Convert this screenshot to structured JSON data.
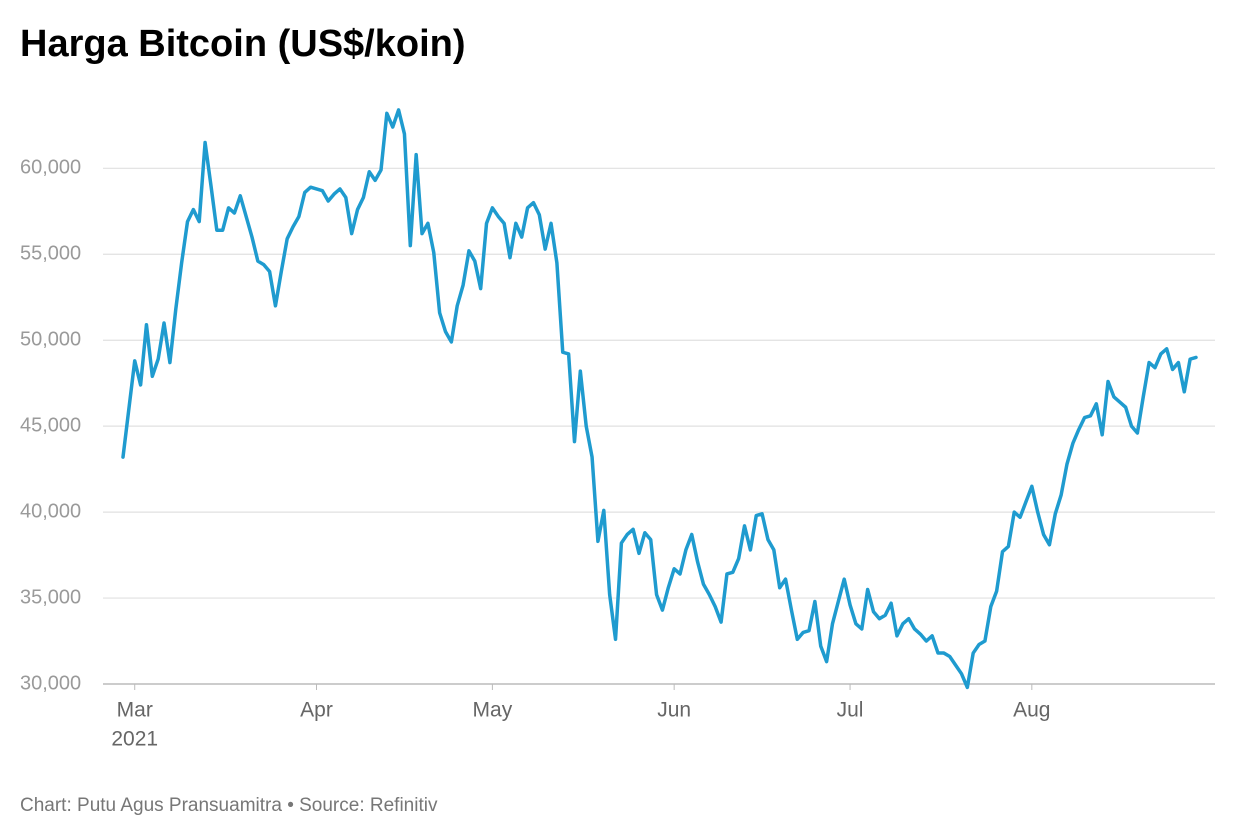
{
  "chart_data": {
    "type": "line",
    "title": "Harga Bitcoin (US$/koin)",
    "credit": "Chart: Putu Agus Pransuamitra • Source: Refinitiv",
    "x_sublabel": "2021",
    "categories": [
      null,
      null,
      "Mar",
      null,
      null,
      null,
      null,
      null,
      null,
      null,
      null,
      null,
      null,
      null,
      null,
      null,
      null,
      null,
      null,
      null,
      null,
      null,
      null,
      null,
      null,
      null,
      null,
      null,
      null,
      null,
      null,
      null,
      null,
      "Apr",
      null,
      null,
      null,
      null,
      null,
      null,
      null,
      null,
      null,
      null,
      null,
      null,
      null,
      null,
      null,
      null,
      null,
      null,
      null,
      null,
      null,
      null,
      null,
      null,
      null,
      null,
      null,
      null,
      null,
      "May",
      null,
      null,
      null,
      null,
      null,
      null,
      null,
      null,
      null,
      null,
      null,
      null,
      null,
      null,
      null,
      null,
      null,
      null,
      null,
      null,
      null,
      null,
      null,
      null,
      null,
      null,
      null,
      null,
      null,
      null,
      "Jun",
      null,
      null,
      null,
      null,
      null,
      null,
      null,
      null,
      null,
      null,
      null,
      null,
      null,
      null,
      null,
      null,
      null,
      null,
      null,
      null,
      null,
      null,
      null,
      null,
      null,
      null,
      null,
      null,
      null,
      "Jul",
      null,
      null,
      null,
      null,
      null,
      null,
      null,
      null,
      null,
      null,
      null,
      null,
      null,
      null,
      null,
      null,
      null,
      null,
      null,
      null,
      null,
      null,
      null,
      null,
      null,
      null,
      null,
      null,
      null,
      null,
      "Aug",
      null,
      null,
      null,
      null,
      null,
      null,
      null,
      null,
      null,
      null,
      null,
      null,
      null,
      null,
      null,
      null,
      null,
      null,
      null,
      null,
      null,
      null,
      null,
      null,
      null,
      null,
      null,
      null
    ],
    "values": [
      43200,
      46000,
      48800,
      47400,
      50900,
      47900,
      48900,
      51000,
      48700,
      51800,
      54500,
      56900,
      57600,
      56900,
      61500,
      59000,
      56400,
      56400,
      57700,
      57400,
      58400,
      57200,
      56000,
      54600,
      54400,
      54000,
      52000,
      54000,
      55900,
      56600,
      57200,
      58600,
      58900,
      58800,
      58700,
      58100,
      58500,
      58800,
      58300,
      56200,
      57600,
      58300,
      59800,
      59300,
      59900,
      63200,
      62400,
      63400,
      62000,
      55500,
      60800,
      56200,
      56800,
      55100,
      51600,
      50500,
      49900,
      52000,
      53200,
      55200,
      54600,
      53000,
      56800,
      57700,
      57200,
      56800,
      54800,
      56800,
      56000,
      57700,
      58000,
      57300,
      55300,
      56800,
      54500,
      49300,
      49200,
      44100,
      48200,
      45000,
      43200,
      38300,
      40100,
      35200,
      32600,
      38200,
      38700,
      39000,
      37600,
      38800,
      38400,
      35200,
      34300,
      35600,
      36700,
      36400,
      37800,
      38700,
      37100,
      35800,
      35200,
      34500,
      33600,
      36400,
      36500,
      37300,
      39200,
      37800,
      39800,
      39900,
      38400,
      37800,
      35600,
      36100,
      34300,
      32600,
      33000,
      33100,
      34800,
      32200,
      31300,
      33500,
      34800,
      36100,
      34600,
      33500,
      33200,
      35500,
      34200,
      33800,
      34000,
      34700,
      32800,
      33500,
      33800,
      33200,
      32900,
      32500,
      32800,
      31800,
      31800,
      31600,
      31100,
      30600,
      29800,
      31800,
      32300,
      32500,
      34500,
      35400,
      37700,
      38000,
      40000,
      39700,
      40600,
      41500,
      40000,
      38700,
      38100,
      39900,
      41000,
      42800,
      44000,
      44800,
      45500,
      45600,
      46300,
      44500,
      47600,
      46700,
      46400,
      46100,
      45000,
      44600,
      46700,
      48700,
      48400,
      49200,
      49500,
      48300,
      48700,
      47000,
      48900,
      49000
    ],
    "color": "#1f9bcf",
    "ylim": [
      30000,
      63800
    ],
    "yticks": [
      {
        "value": 30000,
        "label": "30,000"
      },
      {
        "value": 35000,
        "label": "35,000"
      },
      {
        "value": 40000,
        "label": "40,000"
      },
      {
        "value": 45000,
        "label": "45,000"
      },
      {
        "value": 50000,
        "label": "50,000"
      },
      {
        "value": 55000,
        "label": "55,000"
      },
      {
        "value": 60000,
        "label": "60,000"
      }
    ],
    "grid": true
  }
}
